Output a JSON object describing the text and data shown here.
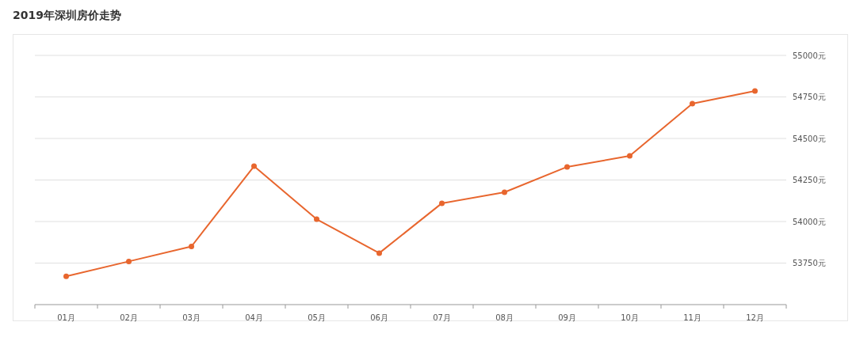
{
  "chart_data": {
    "type": "line",
    "title": "2019年深圳房价走势",
    "categories": [
      "01月",
      "02月",
      "03月",
      "04月",
      "05月",
      "06月",
      "07月",
      "08月",
      "09月",
      "10月",
      "11月",
      "12月"
    ],
    "series": [
      {
        "color": "#e8662e",
        "values": [
          53670,
          53760,
          53850,
          54333,
          54014,
          53810,
          54110,
          54176,
          54329,
          54395,
          54710,
          54786
        ]
      }
    ],
    "ylim": [
      53500,
      55000
    ],
    "yticks": [
      {
        "value": 53750,
        "label": "53750元"
      },
      {
        "value": 54000,
        "label": "54000元"
      },
      {
        "value": 54250,
        "label": "54250元"
      },
      {
        "value": 54500,
        "label": "54500元"
      },
      {
        "value": 54750,
        "label": "54750元"
      },
      {
        "value": 55000,
        "label": "55000元"
      }
    ],
    "grid": "y",
    "marker": "circle",
    "line_style": "solid"
  }
}
